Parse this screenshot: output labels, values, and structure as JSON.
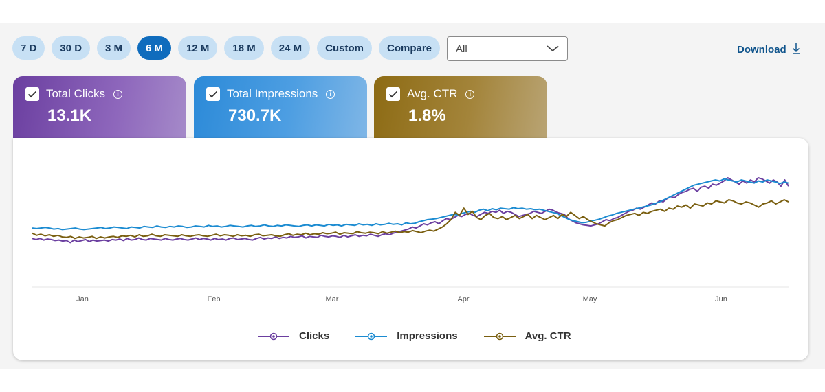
{
  "toolbar": {
    "ranges": [
      {
        "label": "7 D",
        "active": false
      },
      {
        "label": "30 D",
        "active": false
      },
      {
        "label": "3 M",
        "active": false
      },
      {
        "label": "6 M",
        "active": true
      },
      {
        "label": "12 M",
        "active": false
      },
      {
        "label": "18 M",
        "active": false
      },
      {
        "label": "24 M",
        "active": false
      },
      {
        "label": "Custom",
        "active": false
      },
      {
        "label": "Compare",
        "active": false
      }
    ],
    "filter_value": "All",
    "download_label": "Download"
  },
  "cards": {
    "clicks": {
      "label": "Total Clicks",
      "value": "13.1K",
      "checked": true
    },
    "impressions": {
      "label": "Total Impressions",
      "value": "730.7K",
      "checked": true
    },
    "ctr": {
      "label": "Avg. CTR",
      "value": "1.8%",
      "checked": true
    }
  },
  "colors": {
    "clicks": "#6b3fa0",
    "impressions": "#1b8bd1",
    "ctr": "#7a5f10",
    "grid": "#e4e4e4"
  },
  "chart_data": {
    "type": "line",
    "x_tick_labels": [
      "Jan",
      "Feb",
      "Mar",
      "Apr",
      "May",
      "Jun"
    ],
    "grid": false,
    "legend_position": "bottom",
    "series": [
      {
        "name": "Clicks",
        "color": "#6b3fa0",
        "values": [
          60,
          58,
          60,
          57,
          59,
          58,
          56,
          57,
          55,
          56,
          52,
          57,
          54,
          56,
          58,
          54,
          57,
          55,
          56,
          57,
          55,
          58,
          57,
          59,
          56,
          60,
          57,
          58,
          61,
          58,
          57,
          60,
          59,
          58,
          57,
          60,
          58,
          57,
          59,
          60,
          58,
          57,
          59,
          61,
          58,
          60,
          59,
          57,
          60,
          58,
          59,
          57,
          60,
          61,
          58,
          59,
          60,
          58,
          57,
          60,
          62,
          59,
          61,
          60,
          63,
          60,
          62,
          61,
          64,
          62,
          63,
          65,
          61,
          64,
          63,
          62,
          66,
          64,
          63,
          65,
          64,
          62,
          66,
          63,
          65,
          67,
          64,
          66,
          65,
          68,
          66,
          64,
          67,
          69,
          67,
          70,
          72,
          74,
          76,
          78,
          82,
          80,
          84,
          88,
          86,
          90,
          92,
          88,
          94,
          98,
          96,
          100,
          104,
          102,
          106,
          108,
          104,
          102,
          106,
          110,
          108,
          112,
          110,
          114,
          108,
          112,
          110,
          106,
          102,
          104,
          106,
          108,
          112,
          110,
          108,
          112,
          116,
          114,
          110,
          108,
          106,
          98,
          94,
          90,
          88,
          86,
          85,
          84,
          86,
          88,
          92,
          96,
          94,
          98,
          100,
          104,
          108,
          112,
          114,
          118,
          116,
          120,
          124,
          128,
          126,
          132,
          130,
          136,
          140,
          138,
          144,
          148,
          150,
          154,
          156,
          150,
          158,
          160,
          156,
          164,
          162,
          166,
          170,
          176,
          172,
          168,
          164,
          170,
          166,
          172,
          168,
          176,
          174,
          170,
          166,
          172,
          168,
          160,
          172,
          160
        ]
      },
      {
        "name": "Impressions",
        "color": "#1b8bd1",
        "values": [
          80,
          79,
          80,
          81,
          80,
          78,
          79,
          77,
          78,
          79,
          80,
          78,
          77,
          78,
          79,
          80,
          81,
          79,
          80,
          82,
          81,
          80,
          79,
          82,
          81,
          80,
          83,
          82,
          81,
          84,
          82,
          81,
          83,
          82,
          84,
          83,
          81,
          82,
          84,
          83,
          82,
          85,
          83,
          84,
          82,
          83,
          85,
          84,
          83,
          82,
          84,
          85,
          83,
          84,
          86,
          84,
          83,
          85,
          84,
          86,
          85,
          84,
          83,
          85,
          86,
          84,
          86,
          85,
          84,
          87,
          85,
          86,
          84,
          87,
          86,
          85,
          88,
          86,
          87,
          85,
          88,
          86,
          87,
          89,
          87,
          88,
          86,
          90,
          88,
          89,
          92,
          94,
          96,
          97,
          98,
          100,
          102,
          104,
          106,
          105,
          108,
          110,
          112,
          110,
          114,
          116,
          113,
          117,
          115,
          118,
          117,
          116,
          119,
          117,
          118,
          116,
          117,
          115,
          116,
          114,
          112,
          110,
          108,
          104,
          100,
          96,
          94,
          92,
          90,
          91,
          93,
          95,
          97,
          100,
          103,
          105,
          108,
          110,
          112,
          114,
          116,
          118,
          120,
          122,
          124,
          127,
          130,
          134,
          138,
          142,
          146,
          150,
          154,
          158,
          162,
          164,
          166,
          168,
          170,
          172,
          170,
          174,
          172,
          170,
          168,
          172,
          170,
          168,
          166,
          170,
          168,
          172,
          170,
          168,
          165,
          168,
          166
        ]
      },
      {
        "name": "Avg. CTR",
        "color": "#7a5f10",
        "values": [
          70,
          66,
          68,
          65,
          67,
          64,
          66,
          63,
          62,
          64,
          60,
          63,
          61,
          62,
          64,
          60,
          63,
          61,
          63,
          64,
          62,
          65,
          64,
          66,
          63,
          67,
          64,
          65,
          68,
          65,
          64,
          67,
          66,
          65,
          64,
          67,
          65,
          64,
          66,
          67,
          65,
          64,
          66,
          68,
          65,
          67,
          66,
          64,
          67,
          65,
          66,
          64,
          67,
          68,
          65,
          66,
          67,
          65,
          64,
          67,
          69,
          66,
          68,
          67,
          70,
          67,
          69,
          68,
          71,
          69,
          70,
          72,
          68,
          71,
          70,
          69,
          73,
          71,
          70,
          72,
          71,
          69,
          73,
          70,
          72,
          74,
          71,
          73,
          72,
          75,
          73,
          71,
          74,
          76,
          74,
          78,
          82,
          88,
          96,
          110,
          104,
          118,
          106,
          112,
          100,
          96,
          104,
          108,
          100,
          98,
          102,
          96,
          100,
          104,
          98,
          102,
          106,
          98,
          104,
          100,
          96,
          100,
          104,
          98,
          106,
          102,
          110,
          104,
          98,
          102,
          96,
          92,
          88,
          86,
          84,
          90,
          94,
          96,
          100,
          104,
          106,
          108,
          104,
          110,
          108,
          112,
          114,
          116,
          112,
          118,
          116,
          122,
          120,
          124,
          118,
          126,
          124,
          122,
          128,
          126,
          132,
          130,
          128,
          134,
          132,
          128,
          126,
          130,
          128,
          124,
          120,
          126,
          128,
          132,
          126,
          130,
          134,
          130
        ]
      }
    ]
  }
}
